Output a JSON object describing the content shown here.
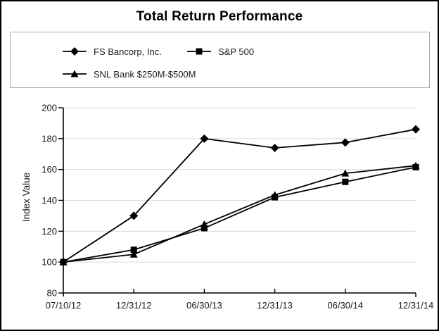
{
  "figure": {
    "title": "Total Return Performance",
    "border_color": "#000000",
    "background": "#ffffff"
  },
  "legend": {
    "border_color": "#adadad"
  },
  "chart_data": {
    "type": "line",
    "title": "Total Return Performance",
    "categories": [
      "07/10/12",
      "12/31/12",
      "06/30/13",
      "12/31/13",
      "06/30/14",
      "12/31/14"
    ],
    "series": [
      {
        "name": "FS Bancorp, Inc.",
        "marker": "diamond",
        "values": [
          100,
          130,
          180,
          174,
          177.5,
          186
        ]
      },
      {
        "name": "S&P 500",
        "marker": "square",
        "values": [
          100,
          108,
          122,
          142,
          152,
          161.5
        ]
      },
      {
        "name": "SNL Bank $250M-$500M",
        "marker": "triangle",
        "values": [
          100,
          105,
          124.5,
          143.5,
          157.5,
          162.5
        ]
      }
    ],
    "xlabel": "",
    "ylabel": "Index Value",
    "ylim": [
      80,
      200
    ],
    "yticks": [
      80,
      100,
      120,
      140,
      160,
      180,
      200
    ],
    "grid": true,
    "legend_position": "top",
    "line_color": "#000000",
    "marker_color": "#000000",
    "gridline_color": "#dcdcdc",
    "axis_color": "#000000",
    "tick_label_color": "#1a1a1a"
  }
}
